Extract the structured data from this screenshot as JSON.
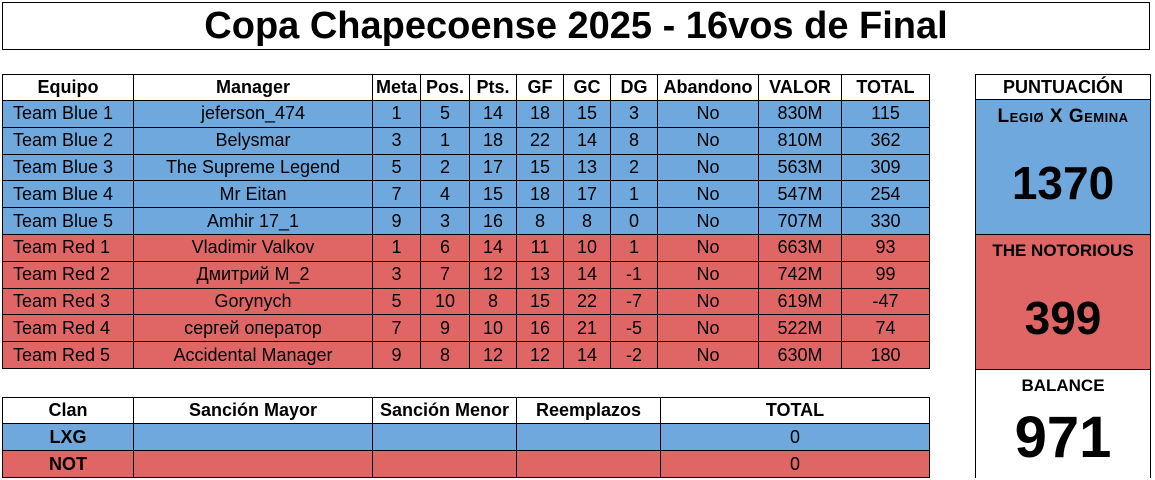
{
  "title": "Copa Chapecoense 2025 - 16vos de Final",
  "colors": {
    "blue": "#6fa8dc",
    "red": "#e06666"
  },
  "main_table": {
    "headers": [
      "Equipo",
      "Manager",
      "Meta",
      "Pos.",
      "Pts.",
      "GF",
      "GC",
      "DG",
      "Abandono",
      "VALOR",
      "TOTAL"
    ],
    "rows": [
      {
        "team": "Team Blue 1",
        "manager": "jeferson_474",
        "meta": "1",
        "pos": "5",
        "pts": "14",
        "gf": "18",
        "gc": "15",
        "dg": "3",
        "abandono": "No",
        "valor": "830M",
        "total": "115"
      },
      {
        "team": "Team Blue 2",
        "manager": "Belysmar",
        "meta": "3",
        "pos": "1",
        "pts": "18",
        "gf": "22",
        "gc": "14",
        "dg": "8",
        "abandono": "No",
        "valor": "810M",
        "total": "362"
      },
      {
        "team": "Team Blue 3",
        "manager": "The Supreme Legend",
        "meta": "5",
        "pos": "2",
        "pts": "17",
        "gf": "15",
        "gc": "13",
        "dg": "2",
        "abandono": "No",
        "valor": "563M",
        "total": "309"
      },
      {
        "team": "Team Blue 4",
        "manager": "Mr Eitan",
        "meta": "7",
        "pos": "4",
        "pts": "15",
        "gf": "18",
        "gc": "17",
        "dg": "1",
        "abandono": "No",
        "valor": "547M",
        "total": "254"
      },
      {
        "team": "Team Blue 5",
        "manager": "Amhir 17_1",
        "meta": "9",
        "pos": "3",
        "pts": "16",
        "gf": "8",
        "gc": "8",
        "dg": "0",
        "abandono": "No",
        "valor": "707M",
        "total": "330"
      },
      {
        "team": "Team Red 1",
        "manager": "Vladimir Valkov",
        "meta": "1",
        "pos": "6",
        "pts": "14",
        "gf": "11",
        "gc": "10",
        "dg": "1",
        "abandono": "No",
        "valor": "663M",
        "total": "93"
      },
      {
        "team": "Team Red 2",
        "manager": "Дмитрий М_2",
        "meta": "3",
        "pos": "7",
        "pts": "12",
        "gf": "13",
        "gc": "14",
        "dg": "-1",
        "abandono": "No",
        "valor": "742M",
        "total": "99"
      },
      {
        "team": "Team Red 3",
        "manager": "Gorynych",
        "meta": "5",
        "pos": "10",
        "pts": "8",
        "gf": "15",
        "gc": "22",
        "dg": "-7",
        "abandono": "No",
        "valor": "619M",
        "total": "-47"
      },
      {
        "team": "Team Red 4",
        "manager": "сергей оператор",
        "meta": "7",
        "pos": "9",
        "pts": "10",
        "gf": "16",
        "gc": "21",
        "dg": "-5",
        "abandono": "No",
        "valor": "522M",
        "total": "74"
      },
      {
        "team": "Team Red 5",
        "manager": "Accidental Manager",
        "meta": "9",
        "pos": "8",
        "pts": "12",
        "gf": "12",
        "gc": "14",
        "dg": "-2",
        "abandono": "No",
        "valor": "630M",
        "total": "180"
      }
    ]
  },
  "clan_table": {
    "headers": [
      "Clan",
      "Sanción Mayor",
      "Sanción Menor",
      "Reemplazos",
      "TOTAL"
    ],
    "rows": [
      {
        "clan": "LXG",
        "mayor": "",
        "menor": "",
        "reemplazos": "",
        "total": "0"
      },
      {
        "clan": "NOT",
        "mayor": "",
        "menor": "",
        "reemplazos": "",
        "total": "0"
      }
    ]
  },
  "score": {
    "header": "PUNTUACIÓN",
    "blue_name": "Legiø X Gemina",
    "blue_score": "1370",
    "red_name": "THE NOTORIOUS",
    "red_score": "399",
    "balance_label": "BALANCE",
    "balance_value": "971"
  }
}
